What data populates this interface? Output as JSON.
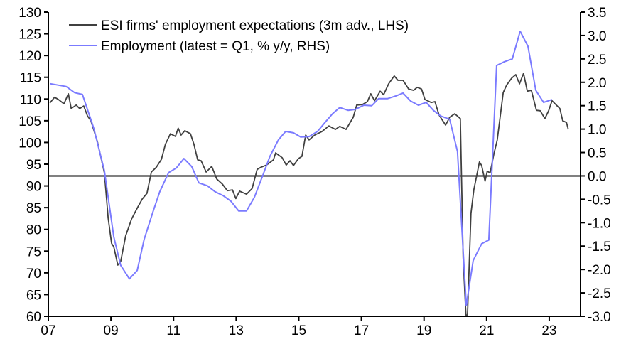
{
  "chart_data": {
    "type": "line",
    "title": "",
    "xlabel": "",
    "ylabel_left": "",
    "ylabel_right": "",
    "x_range": [
      2007,
      2024
    ],
    "x_ticks": [
      {
        "value": 2007,
        "label": "07"
      },
      {
        "value": 2009,
        "label": "09"
      },
      {
        "value": 2011,
        "label": "11"
      },
      {
        "value": 2013,
        "label": "13"
      },
      {
        "value": 2015,
        "label": "15"
      },
      {
        "value": 2017,
        "label": "17"
      },
      {
        "value": 2019,
        "label": "19"
      },
      {
        "value": 2021,
        "label": "21"
      },
      {
        "value": 2023,
        "label": "23"
      }
    ],
    "y_left_range": [
      60,
      130
    ],
    "y_left_ticks": [
      "60",
      "65",
      "70",
      "75",
      "80",
      "85",
      "90",
      "95",
      "100",
      "105",
      "110",
      "115",
      "120",
      "125",
      "130"
    ],
    "y_right_range": [
      -3.0,
      3.5
    ],
    "y_right_ticks": [
      "-3.0",
      "-2.5",
      "-2.0",
      "-1.5",
      "-1.0",
      "-0.5",
      "0.0",
      "0.5",
      "1.0",
      "1.5",
      "2.0",
      "2.5",
      "3.0",
      "3.5"
    ],
    "zero_line_rhs": 0,
    "grid": false,
    "legend_position": "top-left",
    "series": [
      {
        "name": "ESI firms' employment expectations (3m adv., LHS)",
        "axis": "left",
        "color": "#404040",
        "points": [
          [
            2007.05,
            109.1
          ],
          [
            2007.2,
            110.4
          ],
          [
            2007.32,
            109.9
          ],
          [
            2007.5,
            108.9
          ],
          [
            2007.64,
            111.2
          ],
          [
            2007.73,
            107.8
          ],
          [
            2007.89,
            108.6
          ],
          [
            2008.0,
            107.8
          ],
          [
            2008.13,
            108.4
          ],
          [
            2008.25,
            106.1
          ],
          [
            2008.36,
            105.0
          ],
          [
            2008.57,
            100.1
          ],
          [
            2008.79,
            93.0
          ],
          [
            2008.91,
            82.6
          ],
          [
            2009.02,
            76.8
          ],
          [
            2009.09,
            76.0
          ],
          [
            2009.22,
            71.8
          ],
          [
            2009.31,
            72.6
          ],
          [
            2009.47,
            78.5
          ],
          [
            2009.66,
            82.4
          ],
          [
            2009.84,
            84.9
          ],
          [
            2010.0,
            87.0
          ],
          [
            2010.15,
            88.3
          ],
          [
            2010.29,
            93.2
          ],
          [
            2010.45,
            94.3
          ],
          [
            2010.61,
            96.1
          ],
          [
            2010.74,
            99.6
          ],
          [
            2010.9,
            102.0
          ],
          [
            2011.06,
            101.4
          ],
          [
            2011.15,
            103.3
          ],
          [
            2011.24,
            101.7
          ],
          [
            2011.36,
            102.7
          ],
          [
            2011.54,
            102.0
          ],
          [
            2011.65,
            99.6
          ],
          [
            2011.77,
            96.0
          ],
          [
            2011.88,
            95.8
          ],
          [
            2012.04,
            93.2
          ],
          [
            2012.22,
            94.5
          ],
          [
            2012.38,
            91.6
          ],
          [
            2012.56,
            90.4
          ],
          [
            2012.72,
            88.9
          ],
          [
            2012.88,
            89.1
          ],
          [
            2012.99,
            87.1
          ],
          [
            2013.11,
            88.8
          ],
          [
            2013.33,
            88.1
          ],
          [
            2013.51,
            89.4
          ],
          [
            2013.67,
            93.8
          ],
          [
            2013.79,
            94.3
          ],
          [
            2013.97,
            94.8
          ],
          [
            2014.19,
            96.0
          ],
          [
            2014.26,
            97.6
          ],
          [
            2014.47,
            96.5
          ],
          [
            2014.6,
            94.8
          ],
          [
            2014.72,
            95.8
          ],
          [
            2014.83,
            94.7
          ],
          [
            2014.99,
            96.3
          ],
          [
            2015.1,
            96.8
          ],
          [
            2015.22,
            101.7
          ],
          [
            2015.33,
            100.6
          ],
          [
            2015.51,
            101.7
          ],
          [
            2015.74,
            102.5
          ],
          [
            2015.96,
            103.8
          ],
          [
            2016.17,
            103.0
          ],
          [
            2016.31,
            103.7
          ],
          [
            2016.51,
            103.0
          ],
          [
            2016.74,
            105.8
          ],
          [
            2016.85,
            108.6
          ],
          [
            2017.03,
            108.7
          ],
          [
            2017.19,
            109.4
          ],
          [
            2017.3,
            111.2
          ],
          [
            2017.42,
            109.6
          ],
          [
            2017.6,
            111.8
          ],
          [
            2017.71,
            111.0
          ],
          [
            2017.87,
            113.5
          ],
          [
            2018.05,
            115.3
          ],
          [
            2018.17,
            114.3
          ],
          [
            2018.33,
            114.3
          ],
          [
            2018.51,
            112.3
          ],
          [
            2018.67,
            112.0
          ],
          [
            2018.78,
            112.7
          ],
          [
            2018.92,
            112.3
          ],
          [
            2019.03,
            109.9
          ],
          [
            2019.23,
            109.2
          ],
          [
            2019.35,
            109.4
          ],
          [
            2019.48,
            106.3
          ],
          [
            2019.69,
            104.0
          ],
          [
            2019.82,
            105.8
          ],
          [
            2019.98,
            106.6
          ],
          [
            2020.16,
            105.5
          ],
          [
            2020.25,
            73.4
          ],
          [
            2020.34,
            60.3
          ],
          [
            2020.39,
            60.3
          ],
          [
            2020.5,
            83.7
          ],
          [
            2020.59,
            89.1
          ],
          [
            2020.77,
            95.5
          ],
          [
            2020.84,
            94.7
          ],
          [
            2020.95,
            91.1
          ],
          [
            2021.02,
            93.4
          ],
          [
            2021.11,
            93.0
          ],
          [
            2021.23,
            97.3
          ],
          [
            2021.34,
            100.6
          ],
          [
            2021.53,
            111.5
          ],
          [
            2021.64,
            113.2
          ],
          [
            2021.8,
            114.8
          ],
          [
            2021.93,
            115.6
          ],
          [
            2022.05,
            113.5
          ],
          [
            2022.18,
            115.9
          ],
          [
            2022.3,
            111.8
          ],
          [
            2022.43,
            112.0
          ],
          [
            2022.59,
            107.4
          ],
          [
            2022.71,
            107.3
          ],
          [
            2022.86,
            105.5
          ],
          [
            2022.98,
            107.3
          ],
          [
            2023.09,
            109.6
          ],
          [
            2023.34,
            107.8
          ],
          [
            2023.43,
            105.0
          ],
          [
            2023.55,
            104.6
          ],
          [
            2023.61,
            103.0
          ]
        ]
      },
      {
        "name": "Employment (latest = Q1, % y/y, RHS)",
        "axis": "right",
        "color": "#7b7bff",
        "points": [
          [
            2007.05,
            1.97
          ],
          [
            2007.57,
            1.91
          ],
          [
            2007.84,
            1.78
          ],
          [
            2008.09,
            1.74
          ],
          [
            2008.45,
            1.02
          ],
          [
            2008.79,
            0.11
          ],
          [
            2009.09,
            -1.3
          ],
          [
            2009.31,
            -1.91
          ],
          [
            2009.59,
            -2.2
          ],
          [
            2009.84,
            -2.02
          ],
          [
            2010.06,
            -1.36
          ],
          [
            2010.34,
            -0.77
          ],
          [
            2010.56,
            -0.34
          ],
          [
            2010.84,
            0.07
          ],
          [
            2011.09,
            0.17
          ],
          [
            2011.33,
            0.37
          ],
          [
            2011.58,
            0.2
          ],
          [
            2011.81,
            -0.15
          ],
          [
            2012.08,
            -0.21
          ],
          [
            2012.33,
            -0.34
          ],
          [
            2012.58,
            -0.42
          ],
          [
            2012.83,
            -0.54
          ],
          [
            2013.08,
            -0.75
          ],
          [
            2013.33,
            -0.75
          ],
          [
            2013.58,
            -0.46
          ],
          [
            2013.85,
            0.01
          ],
          [
            2014.08,
            0.42
          ],
          [
            2014.35,
            0.77
          ],
          [
            2014.58,
            0.95
          ],
          [
            2014.83,
            0.92
          ],
          [
            2015.06,
            0.83
          ],
          [
            2015.33,
            0.84
          ],
          [
            2015.6,
            0.95
          ],
          [
            2015.85,
            1.15
          ],
          [
            2016.08,
            1.33
          ],
          [
            2016.31,
            1.46
          ],
          [
            2016.58,
            1.4
          ],
          [
            2016.8,
            1.42
          ],
          [
            2017.08,
            1.51
          ],
          [
            2017.33,
            1.5
          ],
          [
            2017.55,
            1.65
          ],
          [
            2017.83,
            1.65
          ],
          [
            2018.1,
            1.71
          ],
          [
            2018.33,
            1.77
          ],
          [
            2018.57,
            1.6
          ],
          [
            2018.82,
            1.51
          ],
          [
            2019.07,
            1.57
          ],
          [
            2019.3,
            1.4
          ],
          [
            2019.53,
            1.28
          ],
          [
            2019.82,
            1.21
          ],
          [
            2020.07,
            0.52
          ],
          [
            2020.35,
            -2.77
          ],
          [
            2020.57,
            -1.81
          ],
          [
            2020.84,
            -1.45
          ],
          [
            2021.07,
            -1.37
          ],
          [
            2021.32,
            2.36
          ],
          [
            2021.57,
            2.44
          ],
          [
            2021.82,
            2.5
          ],
          [
            2022.07,
            3.09
          ],
          [
            2022.32,
            2.77
          ],
          [
            2022.57,
            1.83
          ],
          [
            2022.82,
            1.57
          ],
          [
            2023.09,
            1.63
          ]
        ]
      }
    ]
  }
}
